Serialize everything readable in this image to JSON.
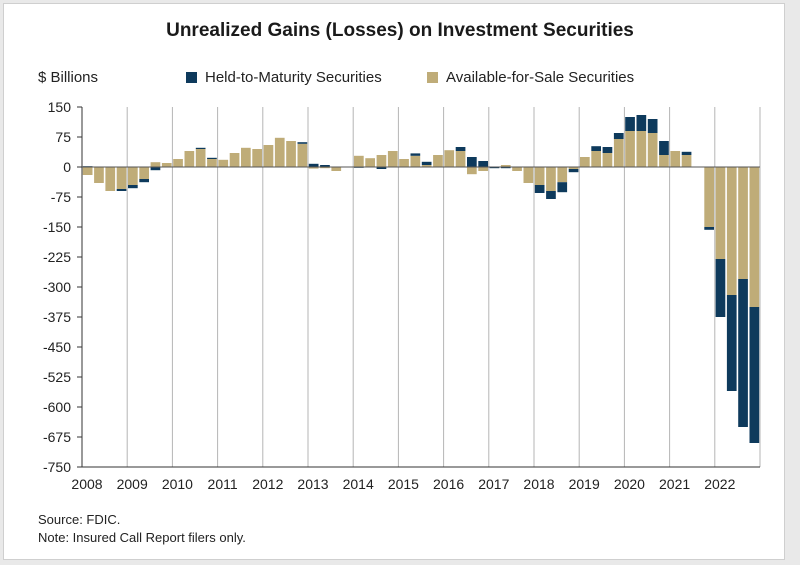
{
  "chart_data": {
    "type": "bar",
    "stacked": true,
    "title": "Unrealized Gains (Losses) on Investment Securities",
    "ylabel": "$ Billions",
    "xlabel": "",
    "ylim": [
      -750,
      150
    ],
    "yticks": [
      150,
      75,
      0,
      -75,
      -150,
      -225,
      -300,
      -375,
      -450,
      -525,
      -600,
      -675,
      -750
    ],
    "xticks": [
      "2008",
      "2009",
      "2010",
      "2011",
      "2012",
      "2013",
      "2014",
      "2015",
      "2016",
      "2017",
      "2018",
      "2019",
      "2020",
      "2021",
      "2022"
    ],
    "quarters_start": "2008Q1",
    "series": [
      {
        "name": "Held-to-Maturity Securities",
        "color": "#0e3a5c",
        "values": [
          2,
          0,
          0,
          -5,
          -8,
          -8,
          -8,
          0,
          0,
          0,
          3,
          3,
          0,
          0,
          0,
          0,
          0,
          0,
          0,
          4,
          8,
          5,
          0,
          0,
          -2,
          0,
          -5,
          0,
          0,
          6,
          8,
          0,
          0,
          10,
          25,
          15,
          -3,
          -3,
          0,
          0,
          -20,
          -20,
          -25,
          -8,
          0,
          12,
          15,
          15,
          35,
          40,
          35,
          35,
          0,
          8,
          0,
          -7,
          -145,
          -240,
          -370,
          -340
        ]
      },
      {
        "name": "Available-for-Sale Securities",
        "color": "#bfac78",
        "values": [
          -20,
          -40,
          -60,
          -55,
          -45,
          -30,
          12,
          10,
          20,
          40,
          45,
          20,
          18,
          35,
          48,
          45,
          55,
          73,
          65,
          58,
          -4,
          -3,
          -10,
          0,
          28,
          22,
          30,
          40,
          20,
          28,
          5,
          30,
          42,
          40,
          -18,
          -10,
          0,
          5,
          -10,
          -40,
          -45,
          -60,
          -38,
          -5,
          25,
          40,
          35,
          70,
          90,
          90,
          85,
          30,
          40,
          30,
          0,
          -150,
          -230,
          -320,
          -280,
          -350
        ]
      }
    ],
    "notes": [
      "Source: FDIC.",
      "Note: Insured Call Report filers only."
    ]
  },
  "legend": {
    "htm_label": "Held-to-Maturity Securities",
    "afs_label": "Available-for-Sale Securities"
  },
  "footer": {
    "source": "Source: FDIC.",
    "note": "Note: Insured Call Report filers only."
  }
}
